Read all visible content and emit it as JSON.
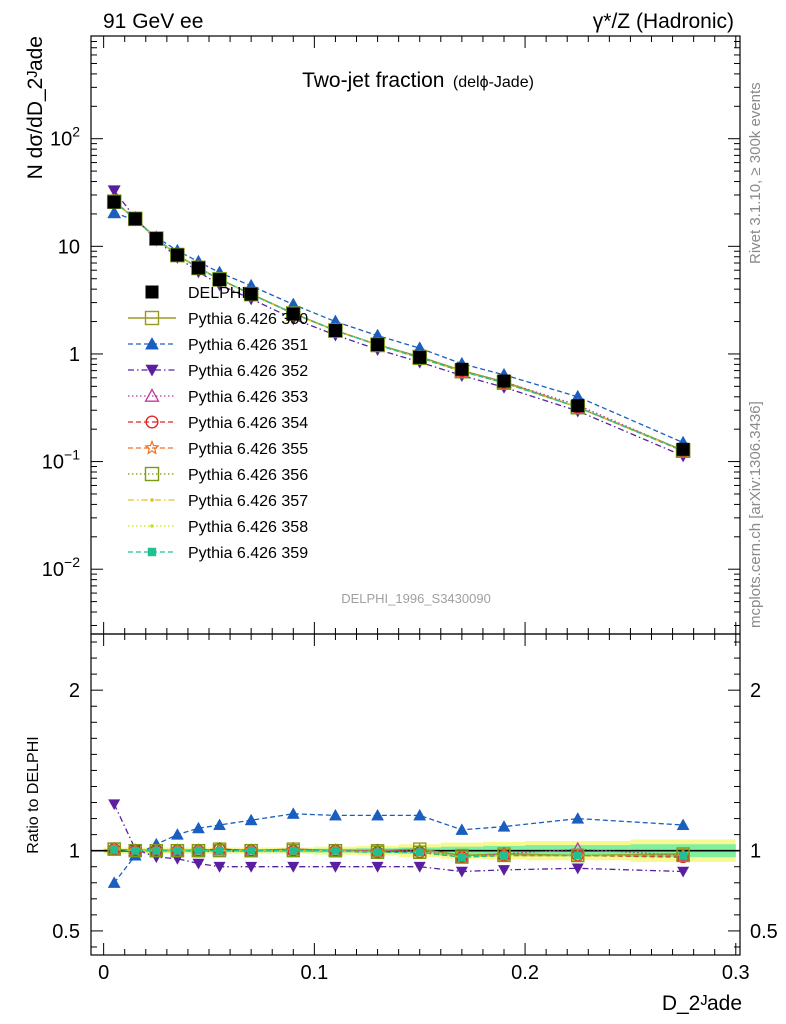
{
  "header": {
    "left": "91 GeV ee",
    "right": "γ*/Z (Hadronic)"
  },
  "side_notes": {
    "rivet": "Rivet 3.1.10, ≥ 300k events",
    "mcplots": "mcplots.cern.ch [arXiv:1306.3436]"
  },
  "chart_data": [
    {
      "type": "line",
      "title": "Two-jet fraction",
      "subtitle": "(delϕ-Jade)",
      "watermark": "DELPHI_1996_S3430090",
      "xlabel": "D_2ᴶade",
      "ylabel": "N dσ/dD_2ᴶade",
      "yscale": "log",
      "xlim": [
        -0.006,
        0.302
      ],
      "ylim": [
        0.0025,
        900
      ],
      "yticks_major": [
        {
          "value": 0.01,
          "base": "10",
          "exp": "−2"
        },
        {
          "value": 0.1,
          "base": "10",
          "exp": "−1"
        },
        {
          "value": 1,
          "base": "1",
          "exp": ""
        },
        {
          "value": 10,
          "base": "10",
          "exp": ""
        },
        {
          "value": 100,
          "base": "10",
          "exp": "2"
        }
      ],
      "x": [
        0.005,
        0.015,
        0.025,
        0.035,
        0.045,
        0.055,
        0.07,
        0.09,
        0.11,
        0.13,
        0.15,
        0.17,
        0.19,
        0.225,
        0.275
      ],
      "series": [
        {
          "name": "DELPHI",
          "color": "#000000",
          "marker": "filled-square",
          "line": "none",
          "values": [
            25.8,
            18.0,
            11.8,
            8.3,
            6.3,
            4.9,
            3.6,
            2.35,
            1.65,
            1.22,
            0.93,
            0.72,
            0.56,
            0.33,
            0.13
          ]
        },
        {
          "name": "Pythia 6.426 350",
          "color": "#9a9a20",
          "marker": "open-square",
          "line": "solid",
          "values": [
            26.0,
            18.0,
            11.8,
            8.3,
            6.3,
            4.95,
            3.6,
            2.38,
            1.65,
            1.22,
            0.94,
            0.7,
            0.55,
            0.32,
            0.127
          ]
        },
        {
          "name": "Pythia 6.426 351",
          "color": "#1a5fc0",
          "marker": "filled-triangle-up",
          "line": "dashed",
          "values": [
            20.5,
            17.5,
            12.2,
            9.1,
            7.2,
            5.7,
            4.3,
            2.88,
            2.0,
            1.48,
            1.13,
            0.81,
            0.64,
            0.4,
            0.15
          ]
        },
        {
          "name": "Pythia 6.426 352",
          "color": "#5a1fa0",
          "marker": "filled-triangle-down",
          "line": "dashdot",
          "values": [
            33.0,
            18.3,
            11.4,
            7.9,
            5.8,
            4.4,
            3.25,
            2.12,
            1.5,
            1.1,
            0.84,
            0.63,
            0.49,
            0.295,
            0.113
          ]
        },
        {
          "name": "Pythia 6.426 353",
          "color": "#c03aa0",
          "marker": "open-triangle-up",
          "line": "dotted",
          "values": [
            26.2,
            18.1,
            11.9,
            8.3,
            6.3,
            4.95,
            3.62,
            2.38,
            1.65,
            1.22,
            0.93,
            0.69,
            0.55,
            0.335,
            0.126
          ]
        },
        {
          "name": "Pythia 6.426 354",
          "color": "#e02020",
          "marker": "open-circle",
          "line": "dashed",
          "values": [
            26.1,
            18.1,
            11.8,
            8.3,
            6.3,
            4.95,
            3.6,
            2.37,
            1.65,
            1.21,
            0.92,
            0.69,
            0.54,
            0.32,
            0.125
          ]
        },
        {
          "name": "Pythia 6.426 355",
          "color": "#f07020",
          "marker": "open-star",
          "line": "dashed",
          "values": [
            26.1,
            18.1,
            11.8,
            8.3,
            6.3,
            4.93,
            3.6,
            2.37,
            1.65,
            1.21,
            0.92,
            0.69,
            0.54,
            0.32,
            0.126
          ]
        },
        {
          "name": "Pythia 6.426 356",
          "color": "#7a9a10",
          "marker": "open-square",
          "line": "dotted",
          "values": [
            26.0,
            18.0,
            11.8,
            8.3,
            6.3,
            4.93,
            3.6,
            2.37,
            1.65,
            1.21,
            0.92,
            0.69,
            0.54,
            0.32,
            0.126
          ]
        },
        {
          "name": "Pythia 6.426 357",
          "color": "#e0c020",
          "marker": "small-dot",
          "line": "dashdot",
          "values": [
            26.0,
            18.0,
            11.8,
            8.3,
            6.3,
            4.93,
            3.6,
            2.37,
            1.65,
            1.21,
            0.92,
            0.69,
            0.54,
            0.32,
            0.126
          ]
        },
        {
          "name": "Pythia 6.426 358",
          "color": "#c8e020",
          "marker": "small-dot",
          "line": "dotted",
          "values": [
            26.0,
            18.0,
            11.8,
            8.3,
            6.3,
            4.93,
            3.6,
            2.37,
            1.65,
            1.21,
            0.92,
            0.69,
            0.54,
            0.32,
            0.126
          ]
        },
        {
          "name": "Pythia 6.426 359",
          "color": "#20c090",
          "marker": "filled-square-small",
          "line": "dashed",
          "values": [
            26.0,
            18.0,
            11.8,
            8.3,
            6.3,
            4.93,
            3.6,
            2.37,
            1.65,
            1.21,
            0.92,
            0.69,
            0.54,
            0.32,
            0.126
          ]
        }
      ]
    },
    {
      "type": "line",
      "ylabel": "Ratio to DELPHI",
      "xlabel": "D_2ᴶade",
      "xlim": [
        -0.006,
        0.302
      ],
      "ylim": [
        0.35,
        2.35
      ],
      "yscale": "linear",
      "yticks": [
        0.5,
        1,
        2
      ],
      "xticks": [
        0,
        0.1,
        0.2,
        0.3
      ],
      "x": [
        0.005,
        0.015,
        0.025,
        0.035,
        0.045,
        0.055,
        0.07,
        0.09,
        0.11,
        0.13,
        0.15,
        0.17,
        0.19,
        0.225,
        0.275
      ],
      "uncertainty_bands": {
        "bin_edges": [
          0.0,
          0.01,
          0.02,
          0.03,
          0.04,
          0.05,
          0.06,
          0.08,
          0.1,
          0.12,
          0.14,
          0.16,
          0.18,
          0.2,
          0.25,
          0.3
        ],
        "inner_half_width": [
          0.01,
          0.01,
          0.01,
          0.01,
          0.01,
          0.01,
          0.01,
          0.01,
          0.012,
          0.015,
          0.02,
          0.025,
          0.03,
          0.035,
          0.04
        ],
        "outer_half_width": [
          0.02,
          0.02,
          0.02,
          0.02,
          0.02,
          0.02,
          0.02,
          0.02,
          0.025,
          0.03,
          0.04,
          0.05,
          0.055,
          0.06,
          0.07
        ],
        "inner_color": "#80f0a0",
        "outer_color": "#f8f890"
      },
      "series": [
        {
          "name": "Pythia 6.426 350",
          "color": "#9a9a20",
          "marker": "open-square",
          "line": "solid",
          "values": [
            1.01,
            1.0,
            1.0,
            1.0,
            1.0,
            1.01,
            1.0,
            1.01,
            1.0,
            1.0,
            1.01,
            0.97,
            0.98,
            0.97,
            0.98
          ]
        },
        {
          "name": "Pythia 6.426 351",
          "color": "#1a5fc0",
          "marker": "filled-triangle-up",
          "line": "dashed",
          "values": [
            0.8,
            0.97,
            1.04,
            1.1,
            1.14,
            1.16,
            1.19,
            1.23,
            1.22,
            1.22,
            1.22,
            1.13,
            1.15,
            1.2,
            1.16
          ]
        },
        {
          "name": "Pythia 6.426 352",
          "color": "#5a1fa0",
          "marker": "filled-triangle-down",
          "line": "dashdot",
          "values": [
            1.29,
            1.01,
            0.96,
            0.95,
            0.92,
            0.9,
            0.9,
            0.9,
            0.9,
            0.9,
            0.9,
            0.87,
            0.88,
            0.89,
            0.87
          ]
        },
        {
          "name": "Pythia 6.426 353",
          "color": "#c03aa0",
          "marker": "open-triangle-up",
          "line": "dotted",
          "values": [
            1.01,
            1.0,
            1.0,
            1.0,
            1.0,
            1.01,
            1.0,
            1.01,
            1.0,
            1.0,
            1.0,
            0.96,
            0.98,
            1.01,
            0.97
          ]
        },
        {
          "name": "Pythia 6.426 354",
          "color": "#e02020",
          "marker": "open-circle",
          "line": "dashed",
          "values": [
            1.01,
            1.0,
            1.0,
            1.0,
            1.0,
            1.01,
            1.0,
            1.0,
            1.0,
            0.99,
            0.99,
            0.96,
            0.97,
            0.97,
            0.96
          ]
        },
        {
          "name": "Pythia 6.426 355",
          "color": "#f07020",
          "marker": "open-star",
          "line": "dashed",
          "values": [
            1.01,
            1.0,
            1.0,
            1.0,
            1.0,
            1.0,
            1.0,
            1.0,
            1.0,
            0.99,
            0.99,
            0.96,
            0.97,
            0.97,
            0.97
          ]
        },
        {
          "name": "Pythia 6.426 356",
          "color": "#7a9a10",
          "marker": "open-square",
          "line": "dotted",
          "values": [
            1.01,
            1.0,
            1.0,
            1.0,
            1.0,
            1.0,
            1.0,
            1.0,
            1.0,
            0.99,
            0.99,
            0.96,
            0.97,
            0.97,
            0.97
          ]
        },
        {
          "name": "Pythia 6.426 357",
          "color": "#e0c020",
          "marker": "small-dot",
          "line": "dashdot",
          "values": [
            1.01,
            1.0,
            1.0,
            1.0,
            1.0,
            1.0,
            1.0,
            1.0,
            1.0,
            0.99,
            0.99,
            0.96,
            0.97,
            0.97,
            0.97
          ]
        },
        {
          "name": "Pythia 6.426 358",
          "color": "#c8e020",
          "marker": "small-dot",
          "line": "dotted",
          "values": [
            1.01,
            1.0,
            1.0,
            1.0,
            1.0,
            1.0,
            1.0,
            1.0,
            1.0,
            0.99,
            0.99,
            0.96,
            0.97,
            0.97,
            0.97
          ]
        },
        {
          "name": "Pythia 6.426 359",
          "color": "#20c090",
          "marker": "filled-square-small",
          "line": "dashed",
          "values": [
            1.01,
            1.0,
            1.0,
            1.0,
            1.0,
            1.0,
            1.0,
            1.0,
            1.0,
            0.99,
            0.99,
            0.96,
            0.97,
            0.97,
            0.97
          ]
        }
      ]
    }
  ]
}
